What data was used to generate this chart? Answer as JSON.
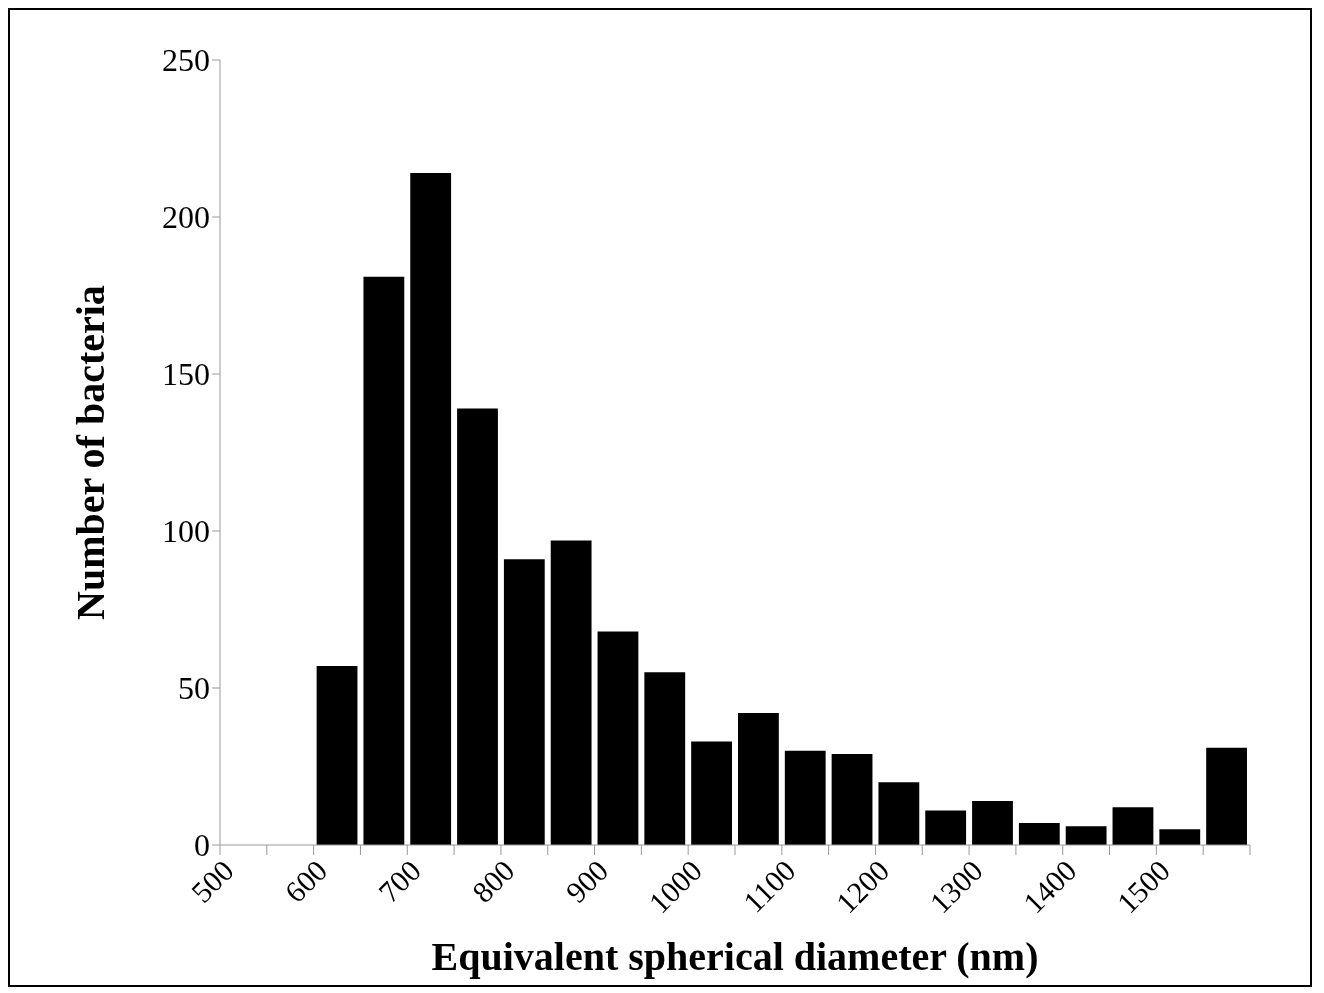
{
  "chart_data": {
    "type": "histogram",
    "xlabel": "Equivalent spherical diameter (nm)",
    "ylabel": "Number of bacteria",
    "bins": [
      500,
      550,
      600,
      650,
      700,
      750,
      800,
      850,
      900,
      950,
      1000,
      1050,
      1100,
      1150,
      1200,
      1250,
      1300,
      1350,
      1400,
      1450,
      1500,
      1550,
      1600
    ],
    "values": [
      0,
      0,
      57,
      181,
      214,
      139,
      91,
      97,
      68,
      55,
      33,
      42,
      30,
      29,
      20,
      11,
      14,
      7,
      6,
      12,
      5,
      31
    ],
    "color": "#000000",
    "xlim": [
      500,
      1600
    ],
    "xticks": [
      500,
      {
        "value": 550,
        "label": null
      },
      600,
      {
        "value": 650,
        "label": null
      },
      700,
      {
        "value": 750,
        "label": null
      },
      800,
      {
        "value": 850,
        "label": null
      },
      900,
      {
        "value": 950,
        "label": null
      },
      1000,
      {
        "value": 1050,
        "label": null
      },
      1100,
      {
        "value": 1150,
        "label": null
      },
      1200,
      {
        "value": 1250,
        "label": null
      },
      1300,
      {
        "value": 1350,
        "label": null
      },
      1400,
      {
        "value": 1450,
        "label": null
      },
      1500,
      {
        "value": 1550,
        "label": null
      },
      {
        "value": 1600,
        "label": null
      }
    ],
    "ylim": [
      0,
      250
    ],
    "yticks": [
      0,
      50,
      100,
      150,
      200,
      250
    ],
    "grid": false,
    "legend": false
  }
}
